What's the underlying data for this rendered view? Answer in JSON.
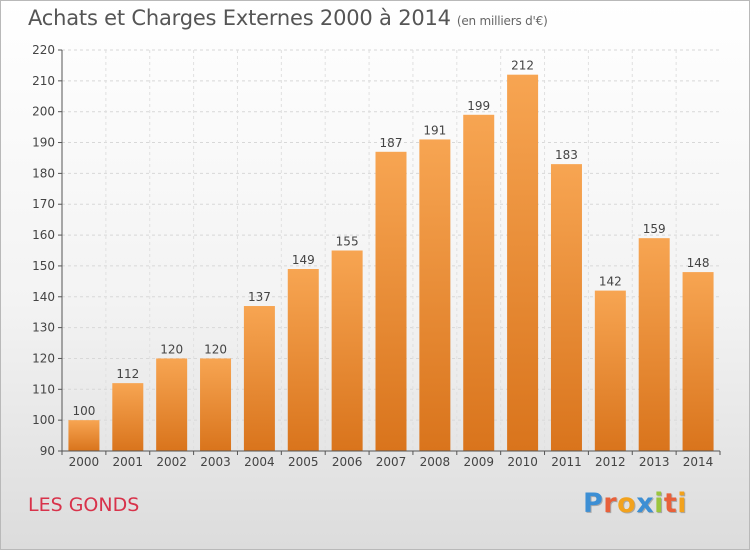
{
  "header": {
    "title": "Achats et Charges Externes 2000 à 2014",
    "unit": "(en milliers d'€)"
  },
  "footer": {
    "place": "LES GONDS",
    "logo_text": "Proxiti",
    "logo_colors": [
      "#3d8fd4",
      "#e8603a",
      "#f2a21d",
      "#3d8fd4",
      "#9bc53d",
      "#e8603a",
      "#f2a21d"
    ]
  },
  "chart_data": {
    "type": "bar",
    "categories": [
      "2000",
      "2001",
      "2002",
      "2003",
      "2004",
      "2005",
      "2006",
      "2007",
      "2008",
      "2009",
      "2010",
      "2011",
      "2012",
      "2013",
      "2014"
    ],
    "values": [
      100,
      112,
      120,
      120,
      137,
      149,
      155,
      187,
      191,
      199,
      212,
      183,
      142,
      159,
      148
    ],
    "ylim": [
      90,
      220
    ],
    "yticks": [
      90,
      100,
      110,
      120,
      130,
      140,
      150,
      160,
      170,
      180,
      190,
      200,
      210,
      220
    ],
    "grid": true,
    "bar_color_top": "#f7a552",
    "bar_color_bottom": "#d9741c"
  }
}
